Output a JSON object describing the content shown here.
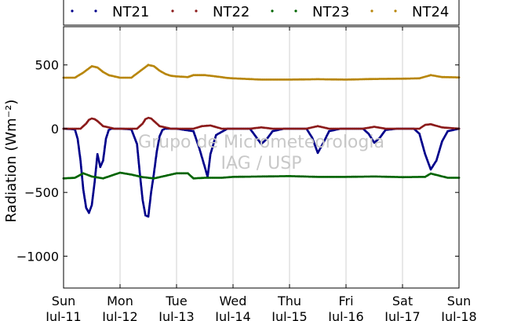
{
  "chart_data": {
    "type": "scatter",
    "ylabel": "Radiation (Wm⁻²)",
    "watermark": [
      "Grupo de Micrometeorologia",
      "IAG / USP"
    ],
    "ylim": [
      -1250,
      800
    ],
    "xlim": [
      0,
      7
    ],
    "yticks": [
      500,
      0,
      -500,
      -1000
    ],
    "ytick_labels": [
      "500",
      "0",
      "−500",
      "−1000"
    ],
    "xticks": [
      {
        "day": "Sun",
        "date": "Jul-11"
      },
      {
        "day": "Mon",
        "date": "Jul-12"
      },
      {
        "day": "Tue",
        "date": "Jul-13"
      },
      {
        "day": "Wed",
        "date": "Jul-14"
      },
      {
        "day": "Thu",
        "date": "Jul-15"
      },
      {
        "day": "Fri",
        "date": "Jul-16"
      },
      {
        "day": "Sat",
        "date": "Jul-17"
      },
      {
        "day": "Sun",
        "date": "Jul-18"
      }
    ],
    "grid": "vertical",
    "legend_position": "top",
    "series": [
      {
        "name": "NT21",
        "color": "#00008b",
        "x": [
          0.0,
          0.2,
          0.25,
          0.3,
          0.35,
          0.4,
          0.45,
          0.5,
          0.55,
          0.6,
          0.65,
          0.7,
          0.75,
          0.8,
          0.85,
          0.9,
          1.0,
          1.2,
          1.3,
          1.35,
          1.4,
          1.45,
          1.5,
          1.55,
          1.6,
          1.65,
          1.7,
          1.75,
          1.8,
          1.85,
          1.9,
          2.0,
          2.3,
          2.4,
          2.5,
          2.55,
          2.6,
          2.7,
          2.9,
          3.3,
          3.4,
          3.5,
          3.6,
          3.7,
          3.9,
          4.3,
          4.4,
          4.5,
          4.6,
          4.7,
          4.9,
          5.3,
          5.4,
          5.5,
          5.6,
          5.7,
          5.9,
          6.2,
          6.3,
          6.4,
          6.5,
          6.6,
          6.7,
          6.8,
          7.0
        ],
        "y": [
          0,
          -5,
          -80,
          -250,
          -480,
          -620,
          -660,
          -600,
          -420,
          -200,
          -300,
          -250,
          -80,
          -10,
          0,
          0,
          0,
          -5,
          -120,
          -350,
          -560,
          -680,
          -690,
          -500,
          -350,
          -180,
          -60,
          -10,
          0,
          0,
          0,
          0,
          -20,
          -150,
          -300,
          -380,
          -200,
          -50,
          0,
          0,
          -60,
          -120,
          -80,
          -20,
          0,
          0,
          -70,
          -190,
          -110,
          -20,
          0,
          0,
          -40,
          -110,
          -70,
          -10,
          0,
          0,
          -40,
          -200,
          -320,
          -250,
          -100,
          -20,
          0
        ]
      },
      {
        "name": "NT22",
        "color": "#8b1a1a",
        "x": [
          0.0,
          0.3,
          0.4,
          0.45,
          0.5,
          0.55,
          0.6,
          0.7,
          0.9,
          1.3,
          1.4,
          1.45,
          1.5,
          1.55,
          1.6,
          1.7,
          1.9,
          2.3,
          2.45,
          2.6,
          2.8,
          3.3,
          3.5,
          3.7,
          4.3,
          4.5,
          4.7,
          5.3,
          5.5,
          5.7,
          6.3,
          6.4,
          6.5,
          6.7,
          7.0
        ],
        "y": [
          0,
          0,
          40,
          70,
          80,
          75,
          60,
          20,
          0,
          0,
          40,
          75,
          85,
          80,
          60,
          20,
          0,
          0,
          20,
          25,
          0,
          0,
          10,
          0,
          0,
          20,
          0,
          0,
          15,
          0,
          0,
          30,
          35,
          10,
          0
        ]
      },
      {
        "name": "NT23",
        "color": "#006400",
        "x": [
          0.0,
          0.2,
          0.35,
          0.5,
          0.7,
          0.9,
          1.0,
          1.2,
          1.4,
          1.6,
          1.8,
          2.0,
          2.2,
          2.3,
          2.5,
          2.8,
          3.0,
          3.5,
          4.0,
          4.5,
          5.0,
          5.5,
          6.0,
          6.4,
          6.5,
          6.8,
          7.0
        ],
        "y": [
          -390,
          -385,
          -350,
          -375,
          -390,
          -360,
          -345,
          -360,
          -380,
          -390,
          -370,
          -350,
          -350,
          -390,
          -385,
          -385,
          -378,
          -375,
          -372,
          -378,
          -378,
          -375,
          -380,
          -378,
          -352,
          -385,
          -385
        ]
      },
      {
        "name": "NT24",
        "color": "#b8860b",
        "x": [
          0.0,
          0.2,
          0.35,
          0.5,
          0.6,
          0.7,
          0.8,
          0.9,
          1.0,
          1.2,
          1.35,
          1.5,
          1.6,
          1.7,
          1.8,
          1.9,
          2.0,
          2.2,
          2.3,
          2.5,
          2.7,
          2.9,
          3.0,
          3.5,
          4.0,
          4.5,
          5.0,
          5.5,
          6.0,
          6.3,
          6.5,
          6.7,
          7.0
        ],
        "y": [
          400,
          400,
          440,
          490,
          480,
          445,
          420,
          410,
          400,
          400,
          450,
          500,
          490,
          455,
          430,
          415,
          410,
          405,
          420,
          420,
          410,
          398,
          395,
          385,
          385,
          388,
          385,
          390,
          392,
          395,
          420,
          405,
          402
        ]
      }
    ]
  }
}
